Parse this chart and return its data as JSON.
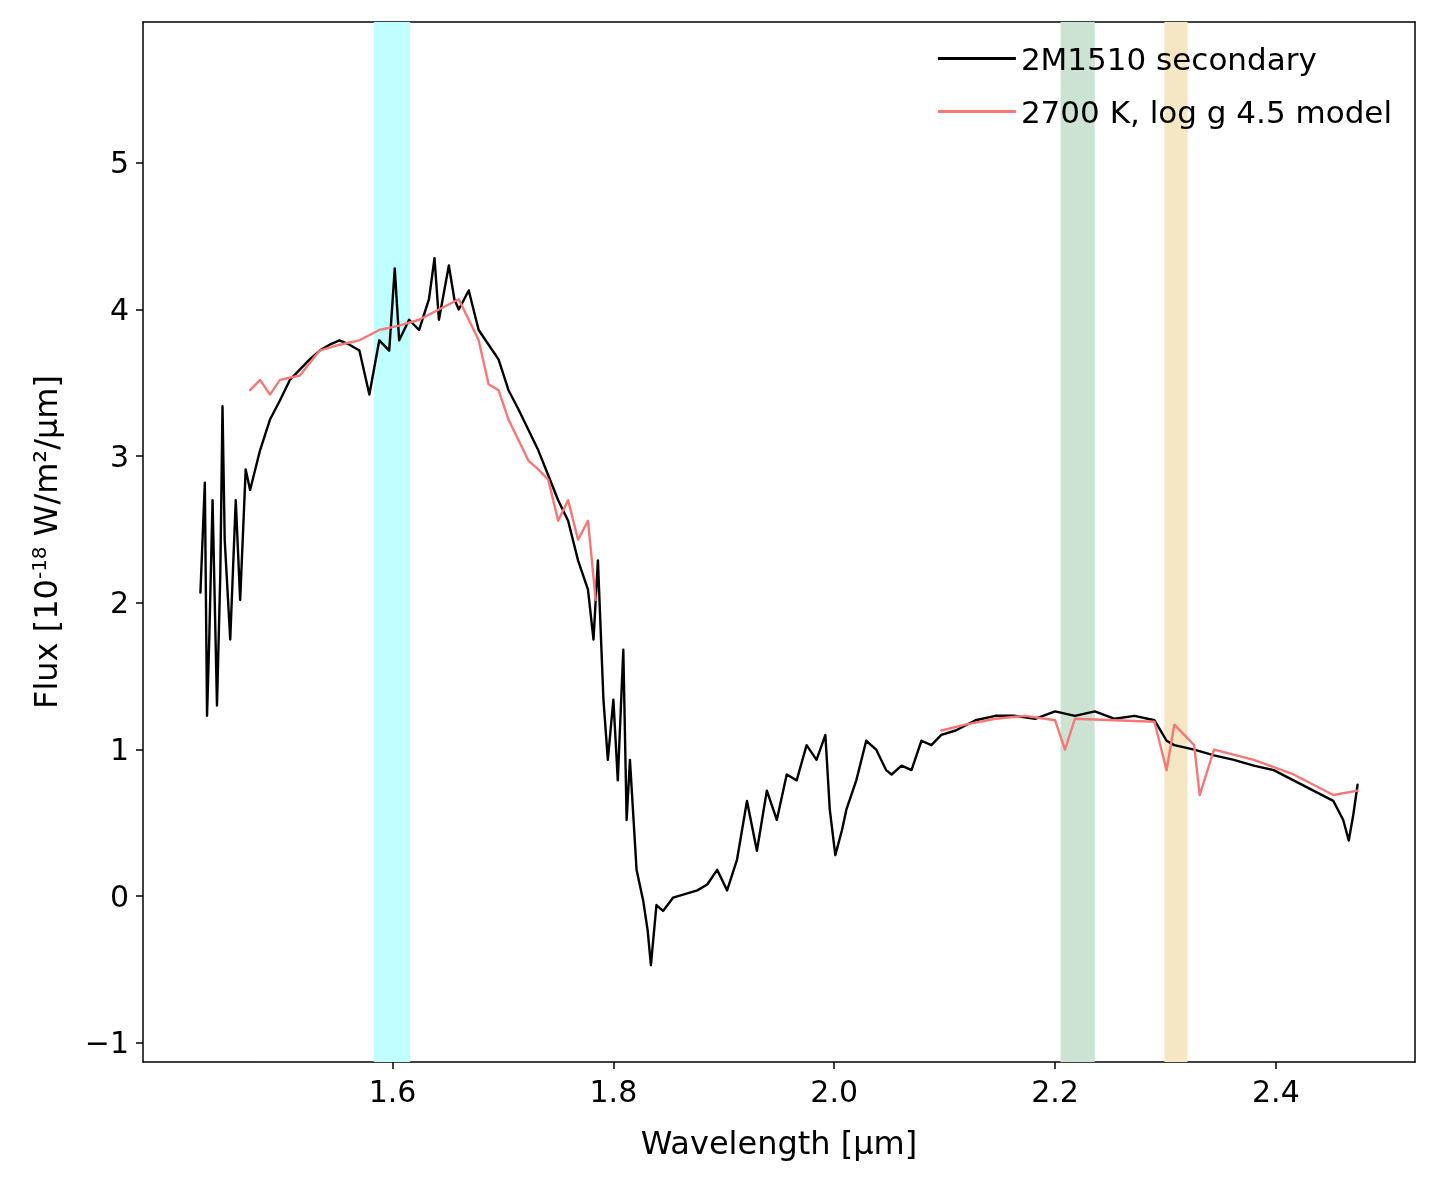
{
  "chart_data": {
    "type": "line",
    "xlabel": "Wavelength [μm]",
    "ylabel": "Flux [10$^{-18}$ W/m²/μm]",
    "xlim": [
      1.374,
      2.526
    ],
    "ylim": [
      -1.13,
      5.96
    ],
    "xticks": [
      1.6,
      1.8,
      {
        "value": 2.0,
        "label": "2.0"
      },
      2.2,
      2.4
    ],
    "yticks": [
      {
        "value": -1,
        "label": "−1"
      },
      0,
      1,
      2,
      3,
      4,
      5
    ],
    "grid": false,
    "legend": "top right",
    "marker": "none",
    "line_style": "solid",
    "bands": [
      {
        "axis": "x",
        "from": 1.583,
        "to": 1.616,
        "color": "#bfffff"
      },
      {
        "axis": "x",
        "from": 2.205,
        "to": 2.236,
        "color": "#cce3d4"
      },
      {
        "axis": "x",
        "from": 2.299,
        "to": 2.32,
        "color": "#f5e6c4"
      }
    ],
    "series": [
      {
        "name": "2M1510 secondary",
        "color": "#000000",
        "x": [
          1.426,
          1.43,
          1.432,
          1.434,
          1.437,
          1.441,
          1.444,
          1.446,
          1.448,
          1.453,
          1.458,
          1.462,
          1.467,
          1.471,
          1.48,
          1.489,
          1.498,
          1.507,
          1.516,
          1.525,
          1.534,
          1.543,
          1.552,
          1.561,
          1.57,
          1.579,
          1.588,
          1.597,
          1.602,
          1.606,
          1.615,
          1.624,
          1.633,
          1.638,
          1.642,
          1.651,
          1.656,
          1.66,
          1.669,
          1.678,
          1.687,
          1.696,
          1.705,
          1.714,
          1.723,
          1.732,
          1.741,
          1.75,
          1.759,
          1.768,
          1.777,
          1.782,
          1.786,
          1.791,
          1.795,
          1.8,
          1.804,
          1.809,
          1.812,
          1.815,
          1.821,
          1.827,
          1.831,
          1.834,
          1.839,
          1.845,
          1.854,
          1.867,
          1.876,
          1.885,
          1.894,
          1.903,
          1.912,
          1.921,
          1.93,
          1.939,
          1.948,
          1.957,
          1.966,
          1.975,
          1.984,
          1.992,
          1.996,
          2.001,
          2.007,
          2.011,
          2.02,
          2.029,
          2.038,
          2.047,
          2.052,
          2.061,
          2.07,
          2.079,
          2.088,
          2.097,
          2.11,
          2.128,
          2.146,
          2.164,
          2.182,
          2.2,
          2.218,
          2.236,
          2.254,
          2.272,
          2.29,
          2.301,
          2.308,
          2.326,
          2.344,
          2.362,
          2.38,
          2.398,
          2.416,
          2.434,
          2.452,
          2.461,
          2.466,
          2.47,
          2.474
        ],
        "values": [
          2.07,
          2.82,
          1.23,
          1.75,
          2.7,
          1.3,
          2.19,
          3.34,
          2.43,
          1.75,
          2.7,
          2.02,
          2.91,
          2.77,
          3.04,
          3.25,
          3.38,
          3.52,
          3.59,
          3.66,
          3.72,
          3.76,
          3.79,
          3.76,
          3.72,
          3.42,
          3.79,
          3.72,
          4.28,
          3.79,
          3.93,
          3.86,
          4.07,
          4.35,
          3.93,
          4.3,
          4.07,
          4.0,
          4.13,
          3.86,
          3.76,
          3.66,
          3.45,
          3.32,
          3.18,
          3.04,
          2.87,
          2.7,
          2.56,
          2.29,
          2.09,
          1.75,
          2.29,
          1.34,
          0.93,
          1.34,
          0.79,
          1.68,
          0.52,
          0.93,
          0.18,
          -0.03,
          -0.23,
          -0.47,
          -0.06,
          -0.1,
          -0.01,
          0.02,
          0.04,
          0.08,
          0.18,
          0.04,
          0.25,
          0.65,
          0.31,
          0.72,
          0.52,
          0.83,
          0.79,
          1.03,
          0.93,
          1.1,
          0.59,
          0.28,
          0.45,
          0.59,
          0.79,
          1.06,
          1.0,
          0.86,
          0.83,
          0.89,
          0.86,
          1.06,
          1.03,
          1.1,
          1.13,
          1.2,
          1.23,
          1.23,
          1.21,
          1.26,
          1.23,
          1.26,
          1.21,
          1.23,
          1.2,
          1.06,
          1.03,
          1.0,
          0.96,
          0.93,
          0.89,
          0.86,
          0.79,
          0.72,
          0.65,
          0.52,
          0.38,
          0.55,
          0.76
        ]
      },
      {
        "name": "2700 K, log g 4.5 model",
        "color": "#f87676",
        "x": [
          1.471,
          1.48,
          1.489,
          1.498,
          1.516,
          1.534,
          1.552,
          1.57,
          1.588,
          1.606,
          1.624,
          1.642,
          1.66,
          1.678,
          1.687,
          1.696,
          1.705,
          1.714,
          1.723,
          1.732,
          1.741,
          1.75,
          1.759,
          1.768,
          1.777,
          1.784,
          1.94,
          2.097,
          2.119,
          2.146,
          2.173,
          2.2,
          2.209,
          2.218,
          2.254,
          2.29,
          2.301,
          2.308,
          2.326,
          2.331,
          2.344,
          2.38,
          2.416,
          2.452,
          2.474
        ],
        "values": [
          3.45,
          3.52,
          3.42,
          3.52,
          3.55,
          3.72,
          3.76,
          3.79,
          3.86,
          3.89,
          3.93,
          4.0,
          4.07,
          3.79,
          3.49,
          3.45,
          3.25,
          3.11,
          2.97,
          2.91,
          2.84,
          2.56,
          2.7,
          2.43,
          2.56,
          2.02,
          null,
          1.13,
          1.17,
          1.21,
          1.23,
          1.2,
          1.0,
          1.21,
          1.2,
          1.19,
          0.86,
          1.17,
          1.03,
          0.69,
          1.0,
          0.93,
          0.83,
          0.69,
          0.72
        ]
      }
    ]
  }
}
